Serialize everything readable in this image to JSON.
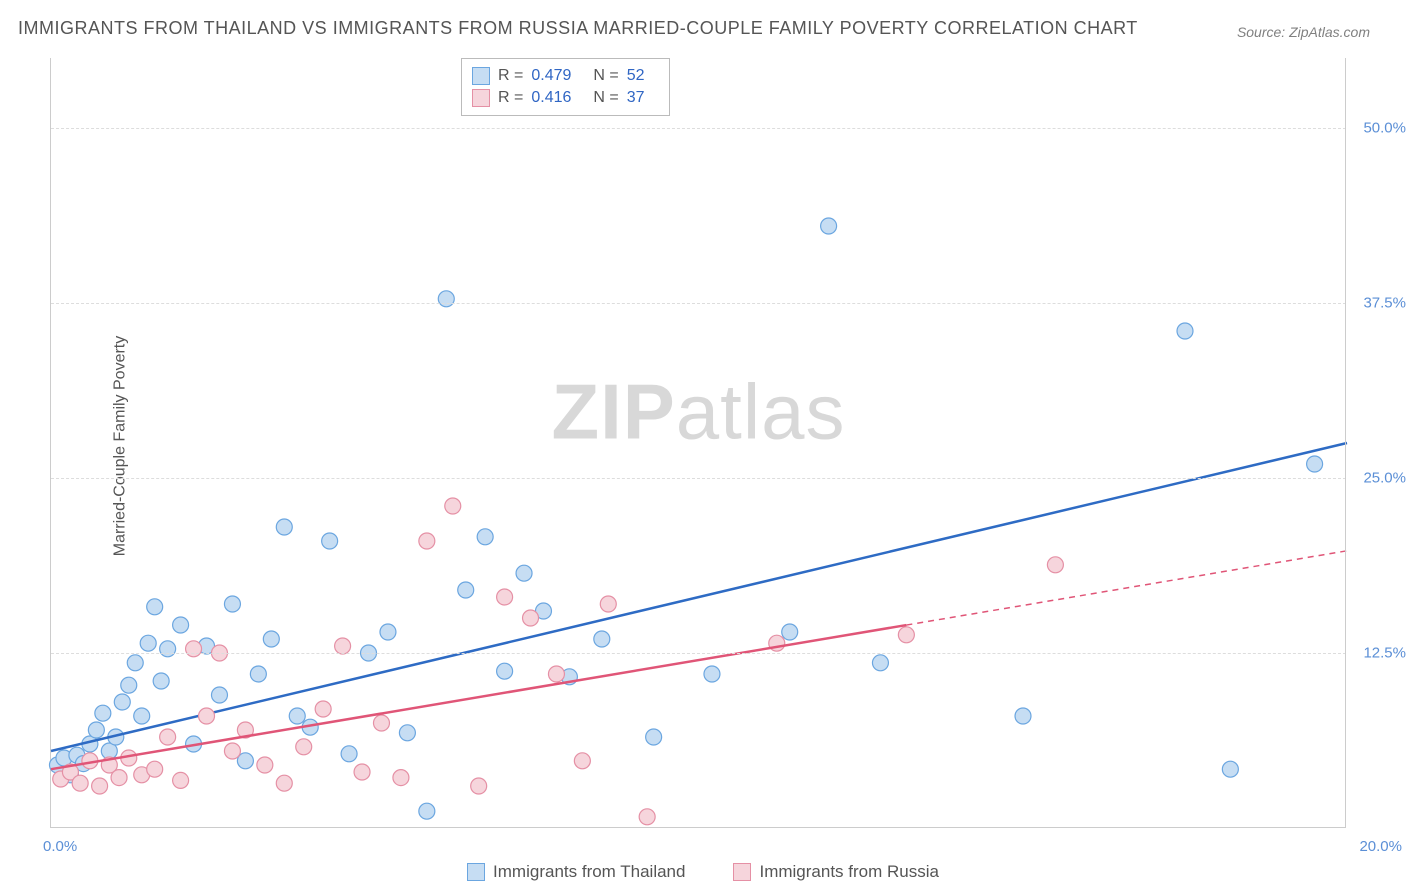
{
  "title": "IMMIGRANTS FROM THAILAND VS IMMIGRANTS FROM RUSSIA MARRIED-COUPLE FAMILY POVERTY CORRELATION CHART",
  "source": "Source: ZipAtlas.com",
  "y_axis_label": "Married-Couple Family Poverty",
  "watermark": {
    "bold": "ZIP",
    "rest": "atlas"
  },
  "chart": {
    "type": "scatter",
    "xlim": [
      0,
      20
    ],
    "ylim": [
      0,
      55
    ],
    "x_ticks": [
      {
        "value": 0,
        "label": "0.0%"
      },
      {
        "value": 20,
        "label": "20.0%"
      }
    ],
    "y_ticks": [
      {
        "value": 12.5,
        "label": "12.5%"
      },
      {
        "value": 25.0,
        "label": "25.0%"
      },
      {
        "value": 37.5,
        "label": "37.5%"
      },
      {
        "value": 50.0,
        "label": "50.0%"
      }
    ],
    "grid_color": "#dddddd",
    "background_color": "#ffffff",
    "marker_radius": 8,
    "marker_stroke_width": 1.2,
    "trendline_width": 2.5,
    "series": [
      {
        "name": "Immigrants from Thailand",
        "fill": "#c6ddf3",
        "stroke": "#6ba6e0",
        "line_color": "#2e6bc4",
        "r": 0.479,
        "n": 52,
        "trend": {
          "x1": 0,
          "y1": 5.5,
          "x2": 20,
          "y2": 27.5,
          "dashed_from_x": null
        },
        "points": [
          [
            0.1,
            4.5
          ],
          [
            0.2,
            5.0
          ],
          [
            0.3,
            3.8
          ],
          [
            0.4,
            5.2
          ],
          [
            0.5,
            4.6
          ],
          [
            0.6,
            6.0
          ],
          [
            0.7,
            7.0
          ],
          [
            0.8,
            8.2
          ],
          [
            0.9,
            5.5
          ],
          [
            1.0,
            6.5
          ],
          [
            1.1,
            9.0
          ],
          [
            1.2,
            10.2
          ],
          [
            1.3,
            11.8
          ],
          [
            1.4,
            8.0
          ],
          [
            1.5,
            13.2
          ],
          [
            1.6,
            15.8
          ],
          [
            1.7,
            10.5
          ],
          [
            1.8,
            12.8
          ],
          [
            2.0,
            14.5
          ],
          [
            2.2,
            6.0
          ],
          [
            2.4,
            13.0
          ],
          [
            2.6,
            9.5
          ],
          [
            2.8,
            16.0
          ],
          [
            3.0,
            4.8
          ],
          [
            3.2,
            11.0
          ],
          [
            3.4,
            13.5
          ],
          [
            3.6,
            21.5
          ],
          [
            3.8,
            8.0
          ],
          [
            4.0,
            7.2
          ],
          [
            4.3,
            20.5
          ],
          [
            4.6,
            5.3
          ],
          [
            4.9,
            12.5
          ],
          [
            5.2,
            14.0
          ],
          [
            5.5,
            6.8
          ],
          [
            5.8,
            1.2
          ],
          [
            6.1,
            37.8
          ],
          [
            6.4,
            17.0
          ],
          [
            6.7,
            20.8
          ],
          [
            7.0,
            11.2
          ],
          [
            7.3,
            18.2
          ],
          [
            7.6,
            15.5
          ],
          [
            8.0,
            10.8
          ],
          [
            8.5,
            13.5
          ],
          [
            9.3,
            6.5
          ],
          [
            10.2,
            11.0
          ],
          [
            11.4,
            14.0
          ],
          [
            12.0,
            43.0
          ],
          [
            12.8,
            11.8
          ],
          [
            15.0,
            8.0
          ],
          [
            17.5,
            35.5
          ],
          [
            18.2,
            4.2
          ],
          [
            19.5,
            26.0
          ]
        ]
      },
      {
        "name": "Immigrants from Russia",
        "fill": "#f6d5dc",
        "stroke": "#e590a5",
        "line_color": "#e05577",
        "r": 0.416,
        "n": 37,
        "trend": {
          "x1": 0,
          "y1": 4.2,
          "x2": 20,
          "y2": 19.8,
          "dashed_from_x": 13.2
        },
        "points": [
          [
            0.15,
            3.5
          ],
          [
            0.3,
            4.0
          ],
          [
            0.45,
            3.2
          ],
          [
            0.6,
            4.8
          ],
          [
            0.75,
            3.0
          ],
          [
            0.9,
            4.5
          ],
          [
            1.05,
            3.6
          ],
          [
            1.2,
            5.0
          ],
          [
            1.4,
            3.8
          ],
          [
            1.6,
            4.2
          ],
          [
            1.8,
            6.5
          ],
          [
            2.0,
            3.4
          ],
          [
            2.2,
            12.8
          ],
          [
            2.4,
            8.0
          ],
          [
            2.6,
            12.5
          ],
          [
            2.8,
            5.5
          ],
          [
            3.0,
            7.0
          ],
          [
            3.3,
            4.5
          ],
          [
            3.6,
            3.2
          ],
          [
            3.9,
            5.8
          ],
          [
            4.2,
            8.5
          ],
          [
            4.5,
            13.0
          ],
          [
            4.8,
            4.0
          ],
          [
            5.1,
            7.5
          ],
          [
            5.4,
            3.6
          ],
          [
            5.8,
            20.5
          ],
          [
            6.2,
            23.0
          ],
          [
            6.6,
            3.0
          ],
          [
            7.0,
            16.5
          ],
          [
            7.4,
            15.0
          ],
          [
            7.8,
            11.0
          ],
          [
            8.2,
            4.8
          ],
          [
            8.6,
            16.0
          ],
          [
            9.2,
            0.8
          ],
          [
            11.2,
            13.2
          ],
          [
            13.2,
            13.8
          ],
          [
            15.5,
            18.8
          ]
        ]
      }
    ]
  },
  "legend_top": {
    "rows": [
      {
        "swatch_fill": "#c6ddf3",
        "swatch_stroke": "#6ba6e0",
        "r_label": "R =",
        "r_value": "0.479",
        "n_label": "N =",
        "n_value": "52"
      },
      {
        "swatch_fill": "#f6d5dc",
        "swatch_stroke": "#e590a5",
        "r_label": "R =",
        "r_value": "0.416",
        "n_label": "N =",
        "n_value": "37"
      }
    ]
  },
  "legend_bottom": {
    "items": [
      {
        "swatch_fill": "#c6ddf3",
        "swatch_stroke": "#6ba6e0",
        "label": "Immigrants from Thailand"
      },
      {
        "swatch_fill": "#f6d5dc",
        "swatch_stroke": "#e590a5",
        "label": "Immigrants from Russia"
      }
    ]
  }
}
